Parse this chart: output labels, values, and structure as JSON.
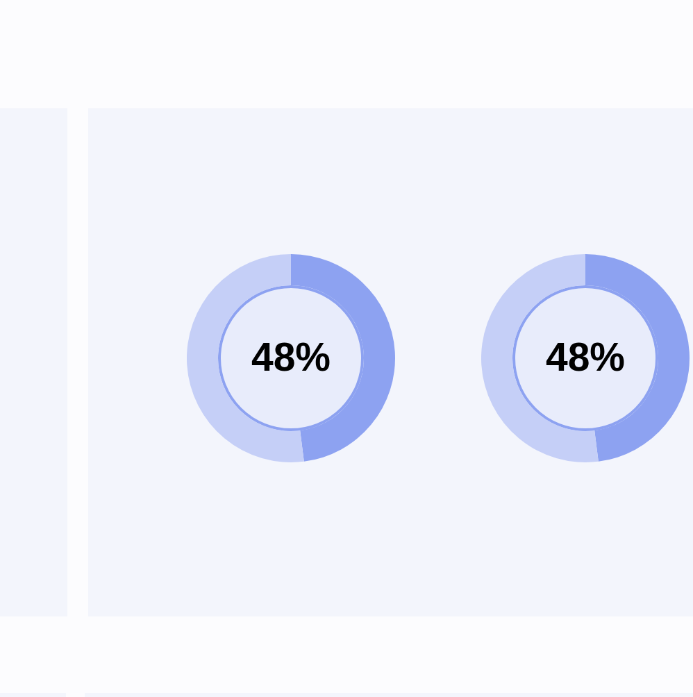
{
  "chart_data": [
    {
      "type": "donut",
      "categories": [
        null,
        null
      ],
      "values": [
        48,
        52
      ],
      "colors": [
        "#8da2f1",
        "#c5cff7"
      ],
      "value_labels": [
        "48%",
        null
      ]
    },
    {
      "type": "donut",
      "categories": [
        null,
        null
      ],
      "values": [
        48,
        52
      ],
      "colors": [
        "#8da2f1",
        "#c5cff7"
      ],
      "value_labels": [
        "48%",
        null
      ]
    }
  ]
}
